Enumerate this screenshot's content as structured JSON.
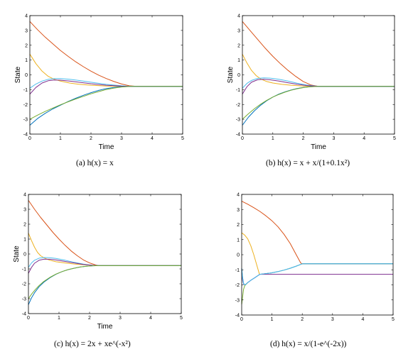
{
  "chart_data": [
    {
      "type": "line",
      "xlabel": "Time",
      "ylabel": "State",
      "xlim": [
        0,
        5
      ],
      "ylim": [
        -4,
        4
      ],
      "xticks": [
        "0",
        "1",
        "2",
        "3",
        "4",
        "5"
      ],
      "yticks": [
        "-4",
        "-3",
        "-2",
        "-1",
        "0",
        "1",
        "2",
        "3",
        "4"
      ],
      "caption": "(a)  h(x) = x",
      "series": [
        {
          "color": "#d95319",
          "x": [
            0,
            0.25,
            0.5,
            0.75,
            1.0,
            1.25,
            1.5,
            1.75,
            2.0,
            2.25,
            2.5,
            2.75,
            3.0,
            3.25,
            3.5,
            5.0
          ],
          "y": [
            3.6,
            3.05,
            2.55,
            2.1,
            1.65,
            1.25,
            0.88,
            0.55,
            0.25,
            -0.02,
            -0.25,
            -0.45,
            -0.62,
            -0.74,
            -0.78,
            -0.78
          ]
        },
        {
          "color": "#edb120",
          "x": [
            0,
            0.2,
            0.4,
            0.6,
            0.8,
            1.0,
            1.3,
            1.6,
            2.0,
            2.5,
            3.0,
            3.3,
            5.0
          ],
          "y": [
            1.4,
            0.75,
            0.25,
            -0.1,
            -0.3,
            -0.42,
            -0.55,
            -0.63,
            -0.7,
            -0.75,
            -0.78,
            -0.78,
            -0.78
          ]
        },
        {
          "color": "#4dbeee",
          "x": [
            0,
            0.2,
            0.4,
            0.6,
            0.8,
            1.0,
            1.3,
            1.6,
            2.0,
            2.5,
            3.0,
            3.3,
            5.0
          ],
          "y": [
            -0.9,
            -0.62,
            -0.42,
            -0.3,
            -0.25,
            -0.25,
            -0.3,
            -0.38,
            -0.5,
            -0.64,
            -0.74,
            -0.78,
            -0.78
          ]
        },
        {
          "color": "#7e2f8e",
          "x": [
            0,
            0.2,
            0.4,
            0.6,
            0.8,
            1.0,
            1.3,
            1.6,
            2.0,
            2.5,
            3.0,
            3.3,
            5.0
          ],
          "y": [
            -1.3,
            -0.85,
            -0.55,
            -0.4,
            -0.35,
            -0.36,
            -0.42,
            -0.5,
            -0.6,
            -0.7,
            -0.76,
            -0.78,
            -0.78
          ]
        },
        {
          "color": "#0072bd",
          "x": [
            0,
            0.25,
            0.5,
            0.75,
            1.0,
            1.25,
            1.5,
            1.75,
            2.0,
            2.25,
            2.5,
            2.75,
            3.0,
            3.3,
            5.0
          ],
          "y": [
            -3.4,
            -2.95,
            -2.6,
            -2.3,
            -2.05,
            -1.8,
            -1.58,
            -1.38,
            -1.2,
            -1.05,
            -0.93,
            -0.85,
            -0.8,
            -0.78,
            -0.78
          ]
        },
        {
          "color": "#77ac30",
          "x": [
            0,
            0.25,
            0.5,
            0.75,
            1.0,
            1.25,
            1.5,
            1.75,
            2.0,
            2.25,
            2.5,
            2.75,
            3.0,
            3.3,
            5.0
          ],
          "y": [
            -3.0,
            -2.72,
            -2.47,
            -2.24,
            -2.02,
            -1.82,
            -1.63,
            -1.45,
            -1.28,
            -1.13,
            -0.99,
            -0.89,
            -0.82,
            -0.78,
            -0.78
          ]
        }
      ]
    },
    {
      "type": "line",
      "xlabel": "Time",
      "ylabel": "State",
      "xlim": [
        0,
        5
      ],
      "ylim": [
        -4,
        4
      ],
      "xticks": [
        "0",
        "1",
        "2",
        "3",
        "4",
        "5"
      ],
      "yticks": [
        "-4",
        "-3",
        "-2",
        "-1",
        "0",
        "1",
        "2",
        "3",
        "4"
      ],
      "caption": "(b)  h(x) = x + x/(1+0.1x²)",
      "series": [
        {
          "color": "#d95319",
          "x": [
            0,
            0.25,
            0.5,
            0.75,
            1.0,
            1.25,
            1.5,
            1.75,
            2.0,
            2.25,
            2.5,
            5.0
          ],
          "y": [
            3.6,
            3.0,
            2.4,
            1.8,
            1.25,
            0.75,
            0.3,
            -0.1,
            -0.45,
            -0.68,
            -0.78,
            -0.78
          ]
        },
        {
          "color": "#edb120",
          "x": [
            0,
            0.15,
            0.3,
            0.45,
            0.6,
            0.8,
            1.0,
            1.3,
            1.6,
            2.0,
            2.5,
            5.0
          ],
          "y": [
            1.4,
            0.8,
            0.3,
            -0.05,
            -0.28,
            -0.45,
            -0.55,
            -0.64,
            -0.7,
            -0.75,
            -0.78,
            -0.78
          ]
        },
        {
          "color": "#4dbeee",
          "x": [
            0,
            0.15,
            0.3,
            0.5,
            0.7,
            0.9,
            1.2,
            1.5,
            1.8,
            2.1,
            2.5,
            5.0
          ],
          "y": [
            -0.9,
            -0.58,
            -0.38,
            -0.24,
            -0.2,
            -0.22,
            -0.3,
            -0.42,
            -0.56,
            -0.68,
            -0.78,
            -0.78
          ]
        },
        {
          "color": "#7e2f8e",
          "x": [
            0,
            0.15,
            0.3,
            0.5,
            0.7,
            0.9,
            1.2,
            1.5,
            1.8,
            2.1,
            2.5,
            5.0
          ],
          "y": [
            -1.3,
            -0.8,
            -0.5,
            -0.33,
            -0.3,
            -0.33,
            -0.42,
            -0.53,
            -0.63,
            -0.72,
            -0.78,
            -0.78
          ]
        },
        {
          "color": "#0072bd",
          "x": [
            0,
            0.2,
            0.4,
            0.6,
            0.8,
            1.0,
            1.2,
            1.4,
            1.6,
            1.8,
            2.0,
            2.2,
            2.5,
            5.0
          ],
          "y": [
            -3.4,
            -2.85,
            -2.42,
            -2.05,
            -1.75,
            -1.5,
            -1.3,
            -1.15,
            -1.02,
            -0.92,
            -0.85,
            -0.8,
            -0.78,
            -0.78
          ]
        },
        {
          "color": "#77ac30",
          "x": [
            0,
            0.2,
            0.4,
            0.6,
            0.8,
            1.0,
            1.2,
            1.4,
            1.6,
            1.8,
            2.0,
            2.2,
            2.5,
            5.0
          ],
          "y": [
            -3.0,
            -2.62,
            -2.28,
            -1.98,
            -1.72,
            -1.5,
            -1.32,
            -1.17,
            -1.04,
            -0.94,
            -0.86,
            -0.81,
            -0.78,
            -0.78
          ]
        }
      ]
    },
    {
      "type": "line",
      "xlabel": "Time",
      "ylabel": "State",
      "xlim": [
        0,
        5
      ],
      "ylim": [
        -4,
        4
      ],
      "xticks": [
        "0",
        "1",
        "2",
        "3",
        "4",
        "5"
      ],
      "yticks": [
        "-4",
        "-3",
        "-2",
        "-1",
        "0",
        "1",
        "2",
        "3",
        "4"
      ],
      "caption": "(c)  h(x) = 2x + xe^(-x²)",
      "series": [
        {
          "color": "#d95319",
          "x": [
            0,
            0.2,
            0.4,
            0.6,
            0.8,
            1.0,
            1.2,
            1.4,
            1.6,
            1.8,
            2.0,
            2.2,
            2.3,
            5.0
          ],
          "y": [
            3.6,
            3.0,
            2.45,
            1.95,
            1.45,
            1.0,
            0.58,
            0.2,
            -0.12,
            -0.4,
            -0.6,
            -0.74,
            -0.78,
            -0.78
          ]
        },
        {
          "color": "#edb120",
          "x": [
            0,
            0.1,
            0.2,
            0.3,
            0.4,
            0.55,
            0.7,
            0.9,
            1.2,
            1.5,
            1.8,
            2.1,
            2.3,
            5.0
          ],
          "y": [
            1.4,
            0.9,
            0.45,
            0.1,
            -0.12,
            -0.3,
            -0.42,
            -0.52,
            -0.6,
            -0.67,
            -0.72,
            -0.76,
            -0.78,
            -0.78
          ]
        },
        {
          "color": "#4dbeee",
          "x": [
            0,
            0.1,
            0.2,
            0.35,
            0.5,
            0.7,
            0.9,
            1.2,
            1.5,
            1.8,
            2.1,
            2.3,
            5.0
          ],
          "y": [
            -0.9,
            -0.6,
            -0.42,
            -0.28,
            -0.24,
            -0.25,
            -0.3,
            -0.42,
            -0.56,
            -0.68,
            -0.76,
            -0.78,
            -0.78
          ]
        },
        {
          "color": "#7e2f8e",
          "x": [
            0,
            0.1,
            0.2,
            0.35,
            0.5,
            0.7,
            0.9,
            1.2,
            1.5,
            1.8,
            2.1,
            2.3,
            5.0
          ],
          "y": [
            -1.3,
            -0.9,
            -0.62,
            -0.42,
            -0.35,
            -0.35,
            -0.4,
            -0.5,
            -0.6,
            -0.7,
            -0.76,
            -0.78,
            -0.78
          ]
        },
        {
          "color": "#0072bd",
          "x": [
            0,
            0.1,
            0.2,
            0.35,
            0.5,
            0.7,
            0.9,
            1.1,
            1.3,
            1.5,
            1.7,
            1.9,
            2.1,
            2.3,
            5.0
          ],
          "y": [
            -3.4,
            -2.95,
            -2.6,
            -2.2,
            -1.9,
            -1.6,
            -1.36,
            -1.18,
            -1.05,
            -0.95,
            -0.87,
            -0.82,
            -0.79,
            -0.78,
            -0.78
          ]
        },
        {
          "color": "#77ac30",
          "x": [
            0,
            0.1,
            0.2,
            0.35,
            0.5,
            0.7,
            0.9,
            1.1,
            1.3,
            1.5,
            1.7,
            1.9,
            2.1,
            2.3,
            5.0
          ],
          "y": [
            -3.0,
            -2.7,
            -2.45,
            -2.12,
            -1.85,
            -1.57,
            -1.35,
            -1.18,
            -1.05,
            -0.95,
            -0.87,
            -0.82,
            -0.79,
            -0.78,
            -0.78
          ]
        }
      ]
    },
    {
      "type": "line",
      "xlabel": "",
      "ylabel": "",
      "xlim": [
        0,
        5
      ],
      "ylim": [
        -4,
        4
      ],
      "xticks": [
        "0",
        "1",
        "2",
        "3",
        "4",
        "5"
      ],
      "yticks": [
        "-4",
        "-3",
        "-2",
        "-1",
        "0",
        "1",
        "2",
        "3",
        "4"
      ],
      "caption": "(d)  h(x) = x/(1-e^(-2x))",
      "series": [
        {
          "color": "#d95319",
          "x": [
            0,
            0.2,
            0.4,
            0.6,
            0.8,
            1.0,
            1.2,
            1.4,
            1.6,
            1.8,
            1.95,
            2.0,
            5.0
          ],
          "y": [
            3.55,
            3.35,
            3.12,
            2.87,
            2.58,
            2.25,
            1.85,
            1.35,
            0.75,
            0.0,
            -0.55,
            -0.6,
            -0.6
          ]
        },
        {
          "color": "#edb120",
          "x": [
            0,
            0.1,
            0.2,
            0.3,
            0.4,
            0.5,
            0.58,
            0.6,
            0.8,
            1.0,
            1.2,
            1.4,
            1.6,
            1.8,
            2.0,
            5.0
          ],
          "y": [
            1.45,
            1.3,
            1.05,
            0.6,
            0.0,
            -0.7,
            -1.25,
            -1.3,
            -1.25,
            -1.2,
            -1.12,
            -1.02,
            -0.9,
            -0.76,
            -0.6,
            -0.6
          ]
        },
        {
          "color": "#0072bd",
          "x": [
            0,
            0.03,
            0.06,
            0.1,
            0.15,
            0.2,
            0.3,
            0.45,
            0.6,
            0.8,
            1.0,
            1.2,
            1.4,
            1.6,
            1.8,
            2.0,
            5.0
          ],
          "y": [
            -0.9,
            -1.5,
            -1.9,
            -2.0,
            -1.95,
            -1.85,
            -1.7,
            -1.5,
            -1.3,
            -1.25,
            -1.2,
            -1.12,
            -1.02,
            -0.9,
            -0.76,
            -0.6,
            -0.6
          ]
        },
        {
          "color": "#7e2f8e",
          "x": [
            0,
            0.03,
            0.06,
            0.1,
            0.15,
            0.2,
            0.3,
            0.45,
            0.6,
            5.0
          ],
          "y": [
            -1.2,
            -1.7,
            -1.95,
            -2.0,
            -1.95,
            -1.85,
            -1.7,
            -1.5,
            -1.3,
            -1.3
          ]
        },
        {
          "color": "#77ac30",
          "x": [
            0,
            0.03,
            0.06,
            0.1,
            0.15,
            0.2
          ],
          "y": [
            -3.3,
            -2.8,
            -2.3,
            -2.05,
            -1.95,
            -1.85
          ]
        },
        {
          "color": "#4dbeee",
          "x": [
            0,
            0.03,
            0.06,
            0.1,
            0.15,
            0.2,
            0.3,
            0.45,
            0.6,
            0.8,
            1.0,
            1.2,
            1.4,
            1.6,
            1.8,
            2.0,
            5.0
          ],
          "y": [
            -0.95,
            -1.55,
            -1.92,
            -2.0,
            -1.95,
            -1.85,
            -1.7,
            -1.5,
            -1.3,
            -1.25,
            -1.2,
            -1.12,
            -1.02,
            -0.9,
            -0.76,
            -0.6,
            -0.6
          ]
        }
      ]
    }
  ]
}
